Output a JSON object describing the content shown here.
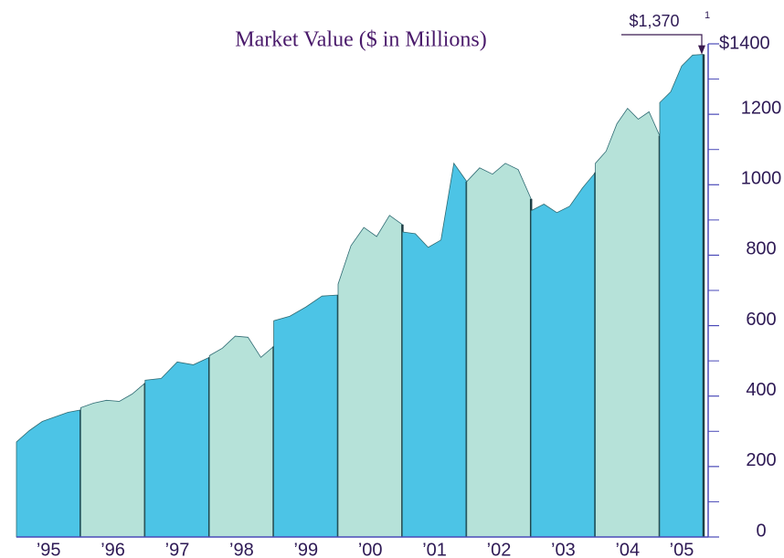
{
  "chart_data": {
    "type": "area",
    "title": "Market Value ($ in Millions)",
    "categories": [
      "’95",
      "’96",
      "’97",
      "’98",
      "’99",
      "’00",
      "’01",
      "’02",
      "’03",
      "’04",
      "’05"
    ],
    "values": [
      [
        270,
        302,
        328,
        341,
        354,
        361
      ],
      [
        367,
        380,
        388,
        385,
        406,
        437
      ],
      [
        445,
        450,
        497,
        489,
        510
      ],
      [
        515,
        536,
        570,
        567,
        510,
        541
      ],
      [
        614,
        627,
        653,
        684,
        687
      ],
      [
        718,
        827,
        879,
        853,
        913,
        887
      ],
      [
        866,
        861,
        822,
        843,
        1061,
        1009
      ],
      [
        1009,
        1048,
        1030,
        1061,
        1043,
        960
      ],
      [
        926,
        945,
        921,
        939,
        991,
        1035
      ],
      [
        1061,
        1095,
        1173,
        1217,
        1186,
        1207,
        1139
      ],
      [
        1233,
        1264,
        1337,
        1368,
        1370
      ]
    ],
    "colors": [
      "#4cc4e6",
      "#b6e2d9"
    ],
    "ylim": [
      0,
      1400
    ],
    "yticks": [
      0,
      200,
      400,
      600,
      800,
      1000,
      1200,
      {
        "value": 1400,
        "label": "$1400"
      }
    ],
    "minor_yticks": [
      100,
      300,
      500,
      700,
      900,
      1100,
      1300
    ],
    "annotation": {
      "text": "$1,370",
      "note": "1",
      "value": 1370
    }
  }
}
